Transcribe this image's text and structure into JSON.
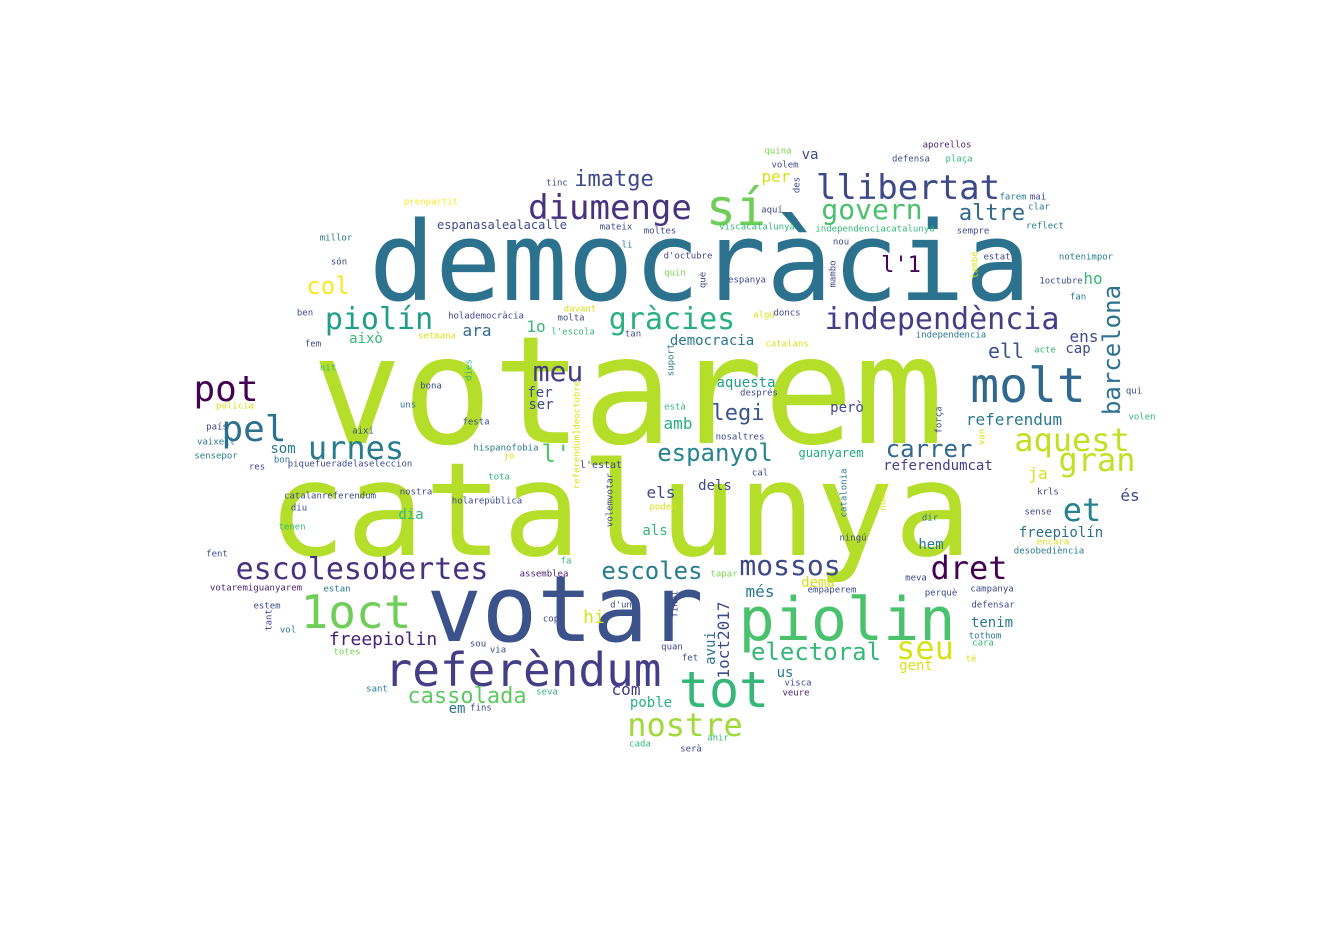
{
  "words": [
    {
      "text": "votarem",
      "color": "#b5de2b"
    },
    {
      "text": "catalunya",
      "color": "#b5de2b"
    },
    {
      "text": "democràcia",
      "color": "#2c728e"
    },
    {
      "text": "votar",
      "color": "#3b528b"
    },
    {
      "text": "piolin",
      "color": "#4ac16d"
    },
    {
      "text": "referèndum",
      "color": "#433e85"
    },
    {
      "text": "tot",
      "color": "#35b779"
    },
    {
      "text": "molt",
      "color": "#31688e"
    },
    {
      "text": "sí",
      "color": "#6ece58"
    },
    {
      "text": "1oct",
      "color": "#6ece58"
    },
    {
      "text": "nostre",
      "color": "#a0da39"
    },
    {
      "text": "llibertat",
      "color": "#3e4989"
    },
    {
      "text": "diumenge",
      "color": "#46327e"
    },
    {
      "text": "independència",
      "color": "#433e85"
    },
    {
      "text": "aquest",
      "color": "#c2df23"
    },
    {
      "text": "gran",
      "color": "#c2df23"
    },
    {
      "text": "seu",
      "color": "#d8e219"
    },
    {
      "text": "escolesobertes",
      "color": "#46327e"
    },
    {
      "text": "pot",
      "color": "#440154"
    },
    {
      "text": "pel",
      "color": "#2c728e"
    },
    {
      "text": "urnes",
      "color": "#287c8e"
    },
    {
      "text": "piolín",
      "color": "#1f9e89"
    },
    {
      "text": "gràcies",
      "color": "#2ab07f"
    },
    {
      "text": "govern",
      "color": "#4ac16d"
    },
    {
      "text": "meu",
      "color": "#433e85"
    },
    {
      "text": "dret",
      "color": "#440154"
    },
    {
      "text": "mossos",
      "color": "#3e4989"
    },
    {
      "text": "barcelona",
      "color": "#2c728e"
    },
    {
      "text": "electoral",
      "color": "#35b779"
    },
    {
      "text": "et",
      "color": "#26828e"
    },
    {
      "text": "espanyol",
      "color": "#25848e"
    },
    {
      "text": "carrer",
      "color": "#31688e"
    },
    {
      "text": "escoles",
      "color": "#287c8e"
    },
    {
      "text": "cassolada",
      "color": "#5ec962"
    },
    {
      "text": "imatge",
      "color": "#3e4989"
    },
    {
      "text": "altre",
      "color": "#31688e"
    },
    {
      "text": "col",
      "color": "#fde725"
    },
    {
      "text": "legi",
      "color": "#39568c"
    },
    {
      "text": "l'1",
      "color": "#440154"
    },
    {
      "text": "l'",
      "color": "#52c569"
    },
    {
      "text": "freepiolin",
      "color": "#481f70"
    },
    {
      "text": "ell",
      "color": "#3b528b"
    },
    {
      "text": "1oct2017",
      "color": "#3e4989"
    },
    {
      "text": "referendum",
      "color": "#2a788e"
    },
    {
      "text": "espanasalealacalle",
      "color": "#3e4989"
    },
    {
      "text": "ara",
      "color": "#31688e"
    },
    {
      "text": "1o",
      "color": "#35b779"
    },
    {
      "text": "democracia",
      "color": "#2a788e"
    },
    {
      "text": "aquesta",
      "color": "#1f9e89"
    },
    {
      "text": "amb",
      "color": "#2ab07f"
    },
    {
      "text": "ens",
      "color": "#3e4989"
    },
    {
      "text": "cap",
      "color": "#3e4989"
    },
    {
      "text": "ho",
      "color": "#35b779"
    },
    {
      "text": "ja",
      "color": "#d8e219"
    },
    {
      "text": "és",
      "color": "#3e4989"
    },
    {
      "text": "hi",
      "color": "#d8e219"
    },
    {
      "text": "com",
      "color": "#443983"
    },
    {
      "text": "més",
      "color": "#2a788e"
    },
    {
      "text": "poble",
      "color": "#2ab07f"
    },
    {
      "text": "avui",
      "color": "#2c728e"
    },
    {
      "text": "gent",
      "color": "#d8e219"
    },
    {
      "text": "per",
      "color": "#d8e219"
    },
    {
      "text": "va",
      "color": "#3e4989"
    },
    {
      "text": "guanyarem",
      "color": "#22a884"
    },
    {
      "text": "referendumcat",
      "color": "#433e85"
    },
    {
      "text": "freepiolín",
      "color": "#2c728e"
    },
    {
      "text": "tenim",
      "color": "#2a788e"
    },
    {
      "text": "els",
      "color": "#3e4989"
    },
    {
      "text": "dels",
      "color": "#3e4989"
    },
    {
      "text": "als",
      "color": "#35b779"
    },
    {
      "text": "som",
      "color": "#2a788e"
    },
    {
      "text": "hem",
      "color": "#2a788e"
    },
    {
      "text": "això",
      "color": "#35b779"
    },
    {
      "text": "fer",
      "color": "#3e4989"
    },
    {
      "text": "ser",
      "color": "#3e4989"
    },
    {
      "text": "dia",
      "color": "#35b779"
    },
    {
      "text": "us",
      "color": "#2a788e"
    },
    {
      "text": "però",
      "color": "#3e4989"
    },
    {
      "text": "em",
      "color": "#2a788e"
    },
    {
      "text": "demà",
      "color": "#d8e219"
    },
    {
      "text": "l'estat",
      "color": "#3e4989"
    },
    {
      "text": "tinc",
      "color": "#3e4989"
    },
    {
      "text": "quina",
      "color": "#7ad151"
    },
    {
      "text": "aporellos",
      "color": "#481f70"
    },
    {
      "text": "defensa",
      "color": "#3e4989"
    },
    {
      "text": "plaça",
      "color": "#35b779"
    },
    {
      "text": "volem",
      "color": "#3e4989"
    },
    {
      "text": "prenpartit",
      "color": "#fde725"
    },
    {
      "text": "aquí",
      "color": "#3e4989"
    },
    {
      "text": "des",
      "color": "#3e4989"
    },
    {
      "text": "farem",
      "color": "#2a788e"
    },
    {
      "text": "mai",
      "color": "#3e4989"
    },
    {
      "text": "clar",
      "color": "#2a788e"
    },
    {
      "text": "reflect",
      "color": "#2a788e"
    },
    {
      "text": "millor",
      "color": "#2a788e"
    },
    {
      "text": "moltes",
      "color": "#3e4989"
    },
    {
      "text": "mateix",
      "color": "#3e4989"
    },
    {
      "text": "viscacatalunya",
      "color": "#35b779"
    },
    {
      "text": "independenciacatalunya",
      "color": "#35b779"
    },
    {
      "text": "sempre",
      "color": "#3e4989"
    },
    {
      "text": "nou",
      "color": "#3e4989"
    },
    {
      "text": "li",
      "color": "#2a788e"
    },
    {
      "text": "d'octubre",
      "color": "#3e4989"
    },
    {
      "text": "estat",
      "color": "#3e4989"
    },
    {
      "text": "notenimpor",
      "color": "#2a788e"
    },
    {
      "text": "són",
      "color": "#3e4989"
    },
    {
      "text": "quin",
      "color": "#7ad151"
    },
    {
      "text": "espanya",
      "color": "#3e4989"
    },
    {
      "text": "1octubre",
      "color": "#3e4989"
    },
    {
      "text": "fan",
      "color": "#2a788e"
    },
    {
      "text": "ben",
      "color": "#3e4989"
    },
    {
      "text": "holademocràcia",
      "color": "#3e4989"
    },
    {
      "text": "molta",
      "color": "#3e4989"
    },
    {
      "text": "davant",
      "color": "#d8e219"
    },
    {
      "text": "algú",
      "color": "#d8e219"
    },
    {
      "text": "doncs",
      "color": "#3e4989"
    },
    {
      "text": "l'escola",
      "color": "#35b779"
    },
    {
      "text": "tan",
      "color": "#3e4989"
    },
    {
      "text": "setmana",
      "color": "#d8e219"
    },
    {
      "text": "fem",
      "color": "#3e4989"
    },
    {
      "text": "independencia",
      "color": "#2a788e"
    },
    {
      "text": "catalans",
      "color": "#d8e219"
    },
    {
      "text": "acte",
      "color": "#35b779"
    },
    {
      "text": "nit",
      "color": "#35b779"
    },
    {
      "text": "bona",
      "color": "#3e4989"
    },
    {
      "text": "qui",
      "color": "#3e4989"
    },
    {
      "text": "uns",
      "color": "#2a788e"
    },
    {
      "text": "policia",
      "color": "#d8e219"
    },
    {
      "text": "està",
      "color": "#35b779"
    },
    {
      "text": "volen",
      "color": "#35b779"
    },
    {
      "text": "país",
      "color": "#3e4989"
    },
    {
      "text": "així",
      "color": "#3e4989"
    },
    {
      "text": "festa",
      "color": "#3e4989"
    },
    {
      "text": "vaixell",
      "color": "#2a788e"
    },
    {
      "text": "hispanofobia",
      "color": "#2a788e"
    },
    {
      "text": "nosaltres",
      "color": "#3e4989"
    },
    {
      "text": "sensepor",
      "color": "#2a788e"
    },
    {
      "text": "bon",
      "color": "#2a788e"
    },
    {
      "text": "jo",
      "color": "#d8e219"
    },
    {
      "text": "res",
      "color": "#3e4989"
    },
    {
      "text": "piquefueradelaseleccion",
      "color": "#3e4989"
    },
    {
      "text": "tota",
      "color": "#35b779"
    },
    {
      "text": "cal",
      "color": "#3e4989"
    },
    {
      "text": "catalanreferendum",
      "color": "#3e4989"
    },
    {
      "text": "nostra",
      "color": "#3e4989"
    },
    {
      "text": "holarepública",
      "color": "#3e4989"
    },
    {
      "text": "krls",
      "color": "#3e4989"
    },
    {
      "text": "diu",
      "color": "#3e4989"
    },
    {
      "text": "poden",
      "color": "#d8e219"
    },
    {
      "text": "sense",
      "color": "#3e4989"
    },
    {
      "text": "dir",
      "color": "#2a788e"
    },
    {
      "text": "encara",
      "color": "#d8e219"
    },
    {
      "text": "tenen",
      "color": "#35b779"
    },
    {
      "text": "ningú",
      "color": "#3e4989"
    },
    {
      "text": "desobediència",
      "color": "#2a788e"
    },
    {
      "text": "fent",
      "color": "#3e4989"
    },
    {
      "text": "fa",
      "color": "#35b779"
    },
    {
      "text": "assemblea",
      "color": "#481f70"
    },
    {
      "text": "tapar",
      "color": "#7ad151"
    },
    {
      "text": "meva",
      "color": "#3e4989"
    },
    {
      "text": "perquè",
      "color": "#3e4989"
    },
    {
      "text": "votaremiguanyarem",
      "color": "#481f70"
    },
    {
      "text": "estan",
      "color": "#2a788e"
    },
    {
      "text": "empaperem",
      "color": "#3e4989"
    },
    {
      "text": "campanya",
      "color": "#3e4989"
    },
    {
      "text": "estem",
      "color": "#3e4989"
    },
    {
      "text": "d'un",
      "color": "#3e4989"
    },
    {
      "text": "defensar",
      "color": "#3e4989"
    },
    {
      "text": "tothom",
      "color": "#2a788e"
    },
    {
      "text": "vol",
      "color": "#2a788e"
    },
    {
      "text": "cop",
      "color": "#3e4989"
    },
    {
      "text": "cara",
      "color": "#35b779"
    },
    {
      "text": "totes",
      "color": "#7ad151"
    },
    {
      "text": "sou",
      "color": "#3e4989"
    },
    {
      "text": "quan",
      "color": "#3e4989"
    },
    {
      "text": "via",
      "color": "#3e4989"
    },
    {
      "text": "fet",
      "color": "#3e4989"
    },
    {
      "text": "té",
      "color": "#d8e219"
    },
    {
      "text": "sant",
      "color": "#2a788e"
    },
    {
      "text": "seva",
      "color": "#35b779"
    },
    {
      "text": "visca",
      "color": "#3e4989"
    },
    {
      "text": "fins",
      "color": "#3e4989"
    },
    {
      "text": "veure",
      "color": "#481f70"
    },
    {
      "text": "ahir",
      "color": "#35b779"
    },
    {
      "text": "cada",
      "color": "#35b779"
    },
    {
      "text": "serà",
      "color": "#3e4989"
    },
    {
      "text": "què",
      "color": "#3e4989"
    },
    {
      "text": "mambo",
      "color": "#3e4989"
    },
    {
      "text": "també",
      "color": "#d8e219"
    },
    {
      "text": "suport",
      "color": "#2a788e"
    },
    {
      "text": "dies",
      "color": "#35b779"
    },
    {
      "text": "referendum1deoctubre",
      "color": "#d8e219"
    },
    {
      "text": "volemvotar",
      "color": "#3e4989"
    },
    {
      "text": "catalonia",
      "color": "#2a788e"
    },
    {
      "text": "només",
      "color": "#d8e219"
    },
    {
      "text": "força",
      "color": "#3e4989"
    },
    {
      "text": "van",
      "color": "#d8e219"
    },
    {
      "text": "tant",
      "color": "#3e4989"
    },
    {
      "text": "final",
      "color": "#3e4989"
    },
    {
      "text": "després",
      "color": "#3e4989"
    }
  ]
}
